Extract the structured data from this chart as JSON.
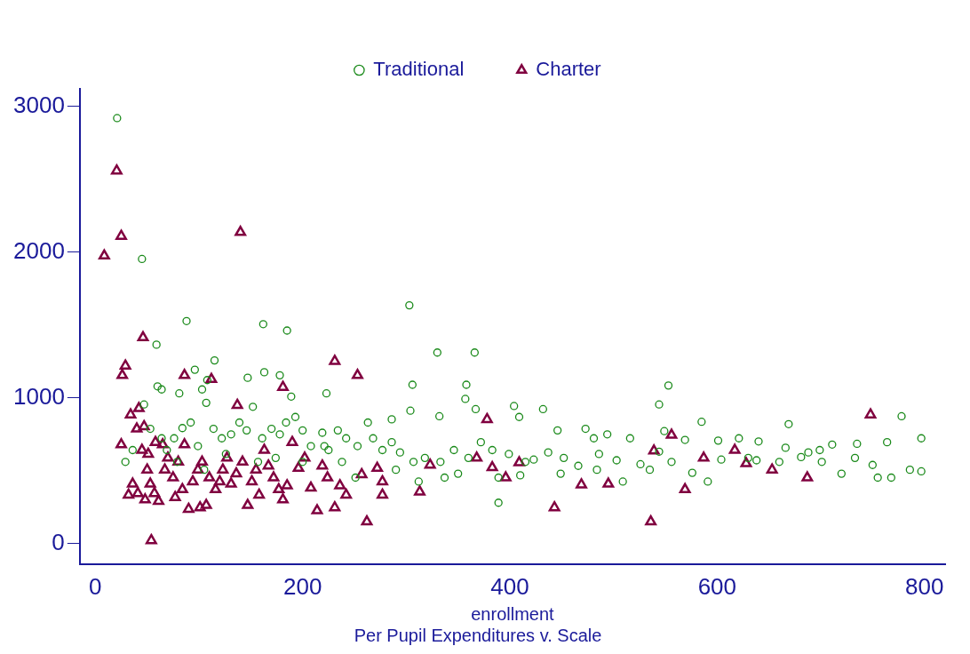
{
  "chart_data": {
    "type": "scatter",
    "title": "Per Pupil Expenditures v. Scale",
    "xlabel": "enrollment",
    "xlim": [
      -15,
      820
    ],
    "ylim": [
      -140,
      3120
    ],
    "xticks": [
      0,
      200,
      400,
      600,
      800
    ],
    "yticks": [
      0,
      1000,
      2000,
      3000
    ],
    "grid": false,
    "legend": "top",
    "series": [
      {
        "name": "Traditional",
        "color": "#1a8a1a",
        "marker": "circle",
        "x": [
          21,
          45,
          88,
          162,
          185,
          303,
          330,
          366,
          59,
          115,
          96,
          147,
          163,
          178,
          306,
          358,
          553,
          60,
          64,
          108,
          81,
          103,
          223,
          189,
          357,
          404,
          432,
          409,
          544,
          585,
          669,
          778,
          304,
          332,
          367,
          286,
          446,
          473,
          481,
          494,
          516,
          549,
          569,
          601,
          621,
          640,
          666,
          688,
          711,
          735,
          764,
          797,
          768,
          786,
          797,
          750,
          720,
          701,
          681,
          660,
          630,
          604,
          576,
          556,
          544,
          526,
          503,
          486,
          466,
          452,
          437,
          423,
          415,
          399,
          389,
          383,
          372,
          360,
          346,
          333,
          318,
          307,
          294,
          286,
          277,
          268,
          263,
          253,
          242,
          234,
          225,
          219,
          208,
          200,
          193,
          184,
          178,
          170,
          161,
          152,
          146,
          139,
          131,
          122,
          114,
          107,
          99,
          92,
          84,
          76,
          69,
          64,
          53,
          47,
          36,
          29,
          79,
          105,
          126,
          157,
          174,
          200,
          221,
          238,
          251,
          290,
          312,
          337,
          350,
          389,
          410,
          449,
          484,
          509,
          535,
          591,
          638,
          699,
          733,
          755
        ],
        "values": [
          2919,
          1953,
          1527,
          1506,
          1462,
          1635,
          1311,
          1311,
          1365,
          1257,
          1193,
          1138,
          1176,
          1155,
          1090,
          1090,
          1085,
          1079,
          1058,
          1122,
          1031,
          1058,
          1031,
          1009,
          993,
          944,
          923,
          869,
          955,
          836,
          820,
          874,
          912,
          874,
          923,
          853,
          777,
          788,
          723,
          750,
          723,
          772,
          712,
          707,
          723,
          701,
          658,
          626,
          680,
          685,
          696,
          723,
          453,
          507,
          496,
          540,
          480,
          561,
          594,
          561,
          588,
          577,
          486,
          561,
          631,
          545,
          572,
          615,
          534,
          588,
          626,
          577,
          561,
          615,
          281,
          642,
          696,
          588,
          642,
          561,
          588,
          561,
          626,
          696,
          642,
          723,
          831,
          669,
          723,
          777,
          642,
          761,
          669,
          777,
          869,
          831,
          750,
          788,
          723,
          939,
          777,
          831,
          750,
          723,
          788,
          966,
          669,
          831,
          793,
          723,
          642,
          723,
          788,
          955,
          642,
          561,
          561,
          507,
          615,
          561,
          588,
          561,
          669,
          561,
          453,
          507,
          426,
          453,
          480,
          453,
          469,
          480,
          507,
          426,
          507,
          426,
          572,
          642,
          588,
          453
        ]
      },
      {
        "name": "Charter",
        "color": "#80003f",
        "marker": "triangle",
        "x": [
          8.6,
          20.6,
          25,
          29,
          26,
          25,
          34,
          32,
          46,
          42,
          40,
          47,
          54,
          86,
          112,
          140,
          137,
          181,
          231,
          253,
          262,
          214,
          231,
          313,
          323,
          368,
          378,
          383,
          396,
          409,
          443,
          469,
          495,
          536,
          539,
          556,
          569,
          587,
          617,
          628,
          653,
          687,
          748,
          45,
          50,
          53,
          57,
          61,
          65,
          70,
          75,
          80,
          86,
          90,
          94,
          99,
          103,
          107,
          110,
          116,
          120,
          123,
          127,
          131,
          136,
          142,
          147,
          151,
          155,
          158,
          163,
          167,
          172,
          177,
          181,
          185,
          190,
          196,
          202,
          208,
          219,
          224,
          236,
          242,
          257,
          272,
          277,
          277,
          36,
          41,
          48,
          51,
          58,
          67,
          77,
          84,
          101
        ],
        "values": [
          1975,
          2558,
          2110,
          1220,
          1155,
          680,
          885,
          335,
          1414,
          928,
          788,
          804,
          22,
          1155,
          1128,
          2137,
          950,
          1074,
          1252,
          1155,
          151,
          227,
          248,
          356,
          540,
          588,
          853,
          523,
          453,
          556,
          248,
          405,
          410,
          151,
          637,
          745,
          372,
          588,
          642,
          550,
          507,
          453,
          885,
          642,
          507,
          410,
          345,
          291,
          680,
          588,
          453,
          561,
          680,
          237,
          426,
          507,
          561,
          264,
          453,
          372,
          426,
          507,
          588,
          410,
          480,
          561,
          264,
          426,
          507,
          335,
          642,
          534,
          453,
          372,
          302,
          399,
          696,
          518,
          588,
          383,
          534,
          453,
          399,
          335,
          475,
          518,
          426,
          335,
          410,
          345,
          302,
          615,
          696,
          507,
          318,
          372,
          248
        ]
      }
    ]
  }
}
